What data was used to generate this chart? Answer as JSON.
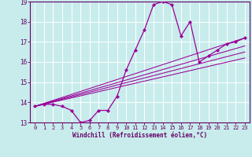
{
  "xlabel": "Windchill (Refroidissement éolien,°C)",
  "bg_color": "#c8ecec",
  "line_color": "#990099",
  "grid_color": "#aadddd",
  "tick_color": "#660066",
  "label_color": "#660066",
  "xlim": [
    -0.5,
    23.5
  ],
  "ylim": [
    13,
    19
  ],
  "yticks": [
    13,
    14,
    15,
    16,
    17,
    18,
    19
  ],
  "xticks": [
    0,
    1,
    2,
    3,
    4,
    5,
    6,
    7,
    8,
    9,
    10,
    11,
    12,
    13,
    14,
    15,
    16,
    17,
    18,
    19,
    20,
    21,
    22,
    23
  ],
  "main_x": [
    0,
    1,
    2,
    3,
    4,
    5,
    6,
    7,
    8,
    9,
    10,
    11,
    12,
    13,
    14,
    15,
    16,
    17,
    18,
    19,
    20,
    21,
    22,
    23
  ],
  "main_y": [
    13.8,
    13.9,
    13.9,
    13.8,
    13.6,
    13.0,
    13.1,
    13.6,
    13.6,
    14.3,
    15.6,
    16.6,
    17.6,
    18.85,
    19.0,
    18.85,
    17.3,
    18.0,
    16.0,
    16.3,
    16.6,
    16.9,
    17.0,
    17.2
  ],
  "trend_lines": [
    {
      "x": [
        0,
        23
      ],
      "y": [
        13.8,
        17.2
      ]
    },
    {
      "x": [
        0,
        23
      ],
      "y": [
        13.8,
        16.8
      ]
    },
    {
      "x": [
        0,
        23
      ],
      "y": [
        13.8,
        16.5
      ]
    },
    {
      "x": [
        0,
        23
      ],
      "y": [
        13.8,
        16.2
      ]
    }
  ]
}
